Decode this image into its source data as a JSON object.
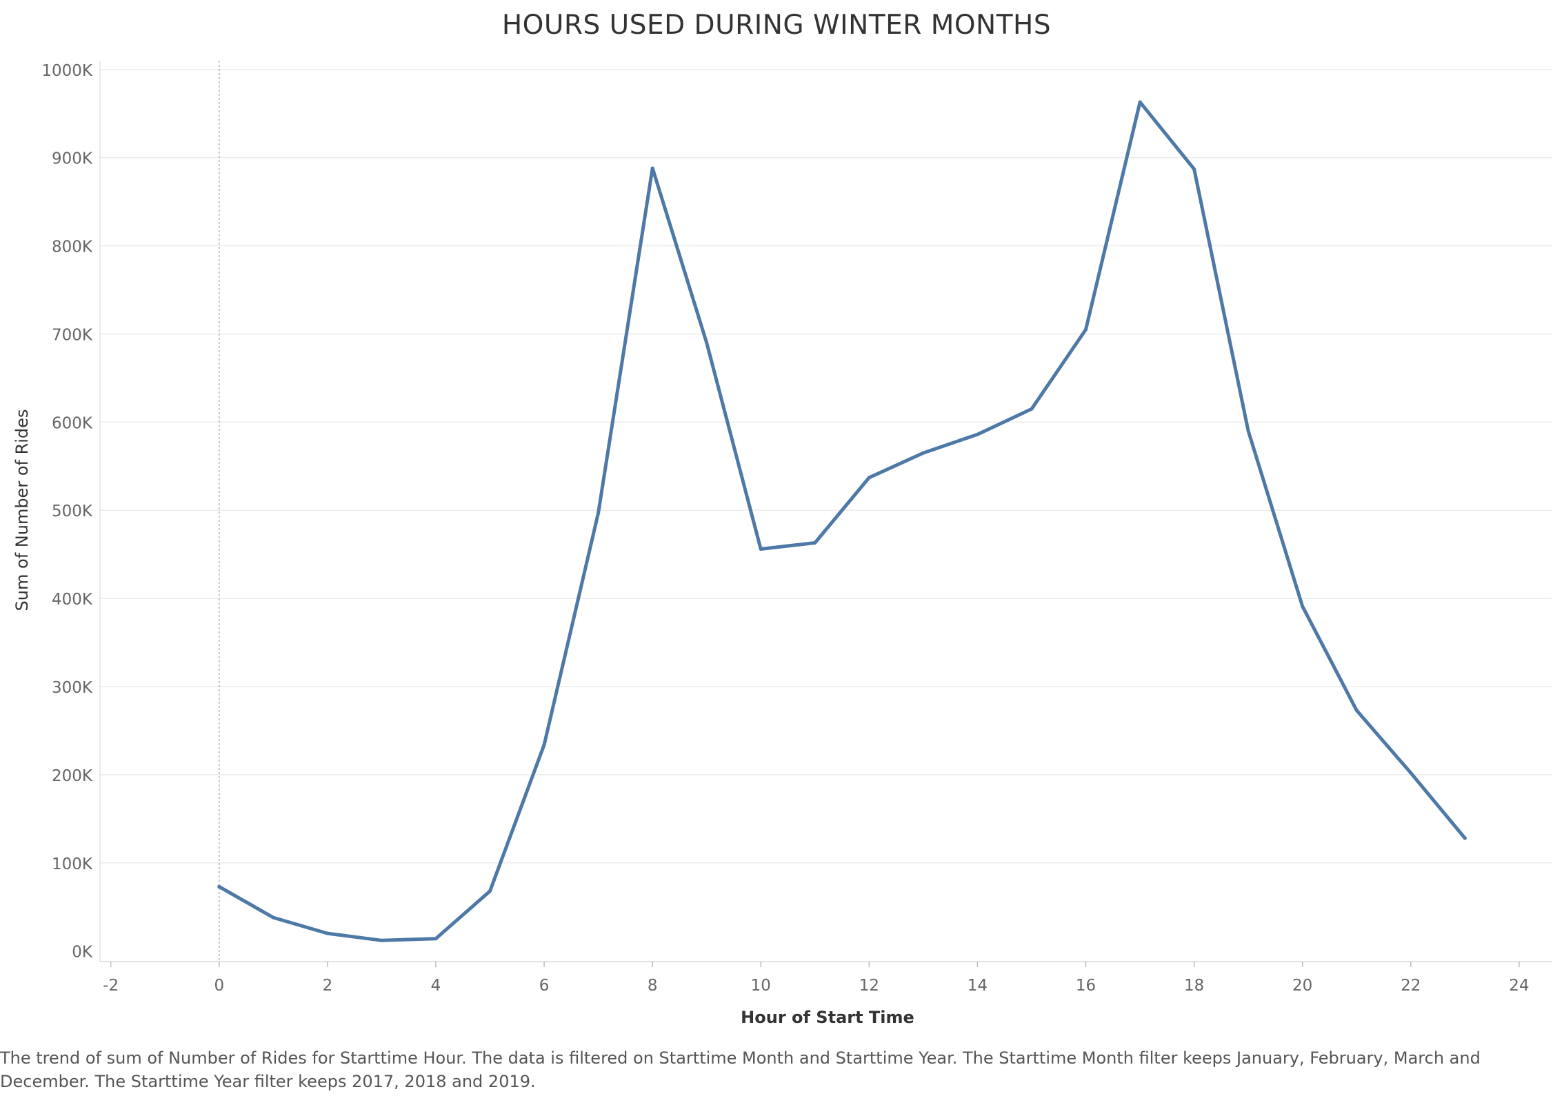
{
  "chart_data": {
    "type": "line",
    "title": "HOURS USED DURING WINTER MONTHS",
    "xlabel": "Hour of Start Time",
    "ylabel": "Sum of Number of Rides",
    "xlim": [
      -2.2,
      24.6
    ],
    "ylim": [
      -12000,
      1010000
    ],
    "x_ticks": [
      -2,
      0,
      2,
      4,
      6,
      8,
      10,
      12,
      14,
      16,
      18,
      20,
      22,
      24
    ],
    "y_ticks": [
      0,
      100000,
      200000,
      300000,
      400000,
      500000,
      600000,
      700000,
      800000,
      900000,
      1000000
    ],
    "y_tick_labels": [
      "0K",
      "100K",
      "200K",
      "300K",
      "400K",
      "500K",
      "600K",
      "700K",
      "800K",
      "900K",
      "1000K"
    ],
    "reference_line_x": 0,
    "grid": "horizontal",
    "series": [
      {
        "color": "#4e79a7",
        "x": [
          0,
          1,
          2,
          3,
          4,
          5,
          6,
          7,
          8,
          9,
          10,
          11,
          12,
          13,
          14,
          15,
          16,
          17,
          18,
          19,
          20,
          21,
          22,
          23
        ],
        "y": [
          73000,
          38000,
          20000,
          12000,
          14000,
          68000,
          234000,
          497000,
          888000,
          690000,
          456000,
          463000,
          537000,
          565000,
          586000,
          615000,
          705000,
          963000,
          887000,
          590000,
          391000,
          273000,
          202000,
          128000
        ]
      }
    ],
    "caption": "The trend of sum of Number of Rides for Starttime Hour. The data is filtered on Starttime Month and Starttime Year. The Starttime Month filter keeps January, February, March and December. The Starttime Year filter keeps 2017, 2018 and 2019."
  }
}
